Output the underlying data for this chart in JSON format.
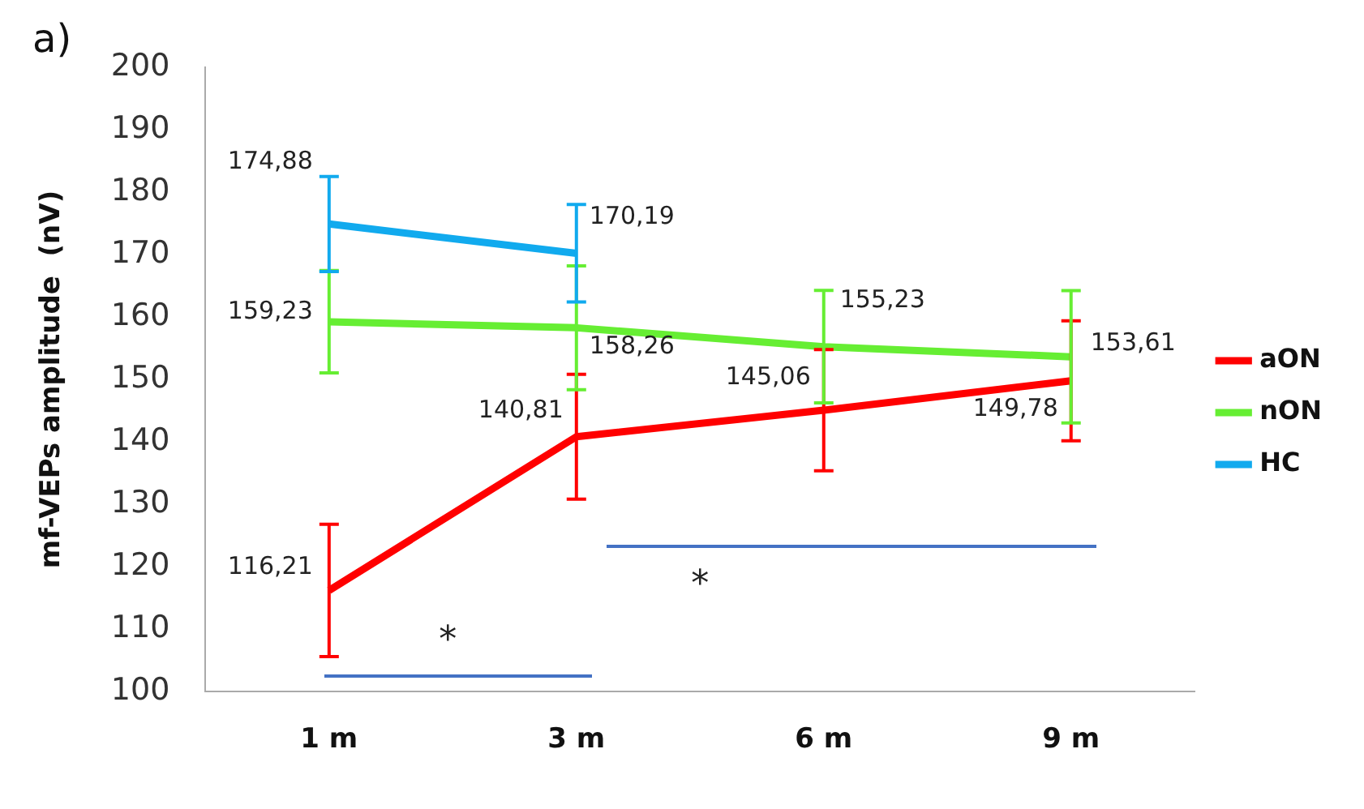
{
  "chart_data": {
    "type": "line",
    "title": "a)",
    "ylabel": "mf-VEPs amplitude  (nV)",
    "categories": [
      "1 m",
      "3 m",
      "6 m",
      "9 m"
    ],
    "series": [
      {
        "name": "aON",
        "color": "#ff0000",
        "values": [
          116.21,
          140.81,
          145.06,
          149.78
        ],
        "value_labels": [
          "116,21",
          "140,81",
          "145,06",
          "149,78"
        ],
        "errors": [
          10.6,
          10,
          9.7,
          9.6
        ]
      },
      {
        "name": "nON",
        "color": "#66ee33",
        "values": [
          159.23,
          158.26,
          155.23,
          153.61
        ],
        "value_labels": [
          "159,23",
          "158,26",
          "155,23",
          "153,61"
        ],
        "errors": [
          8.2,
          9.9,
          9,
          10.6
        ]
      },
      {
        "name": "HC",
        "color": "#11aaee",
        "values": [
          174.88,
          170.19,
          null,
          null
        ],
        "value_labels": [
          "174,88",
          "170,19",
          null,
          null
        ],
        "errors": [
          7.6,
          7.8,
          null,
          null
        ]
      }
    ],
    "ylim": [
      100,
      200
    ],
    "yticks": [
      100,
      110,
      120,
      130,
      140,
      150,
      160,
      170,
      180,
      190,
      200
    ],
    "grid": false,
    "legend": "right",
    "marker": "none",
    "line_style": "solid",
    "annotations": [
      "*",
      "*"
    ]
  }
}
